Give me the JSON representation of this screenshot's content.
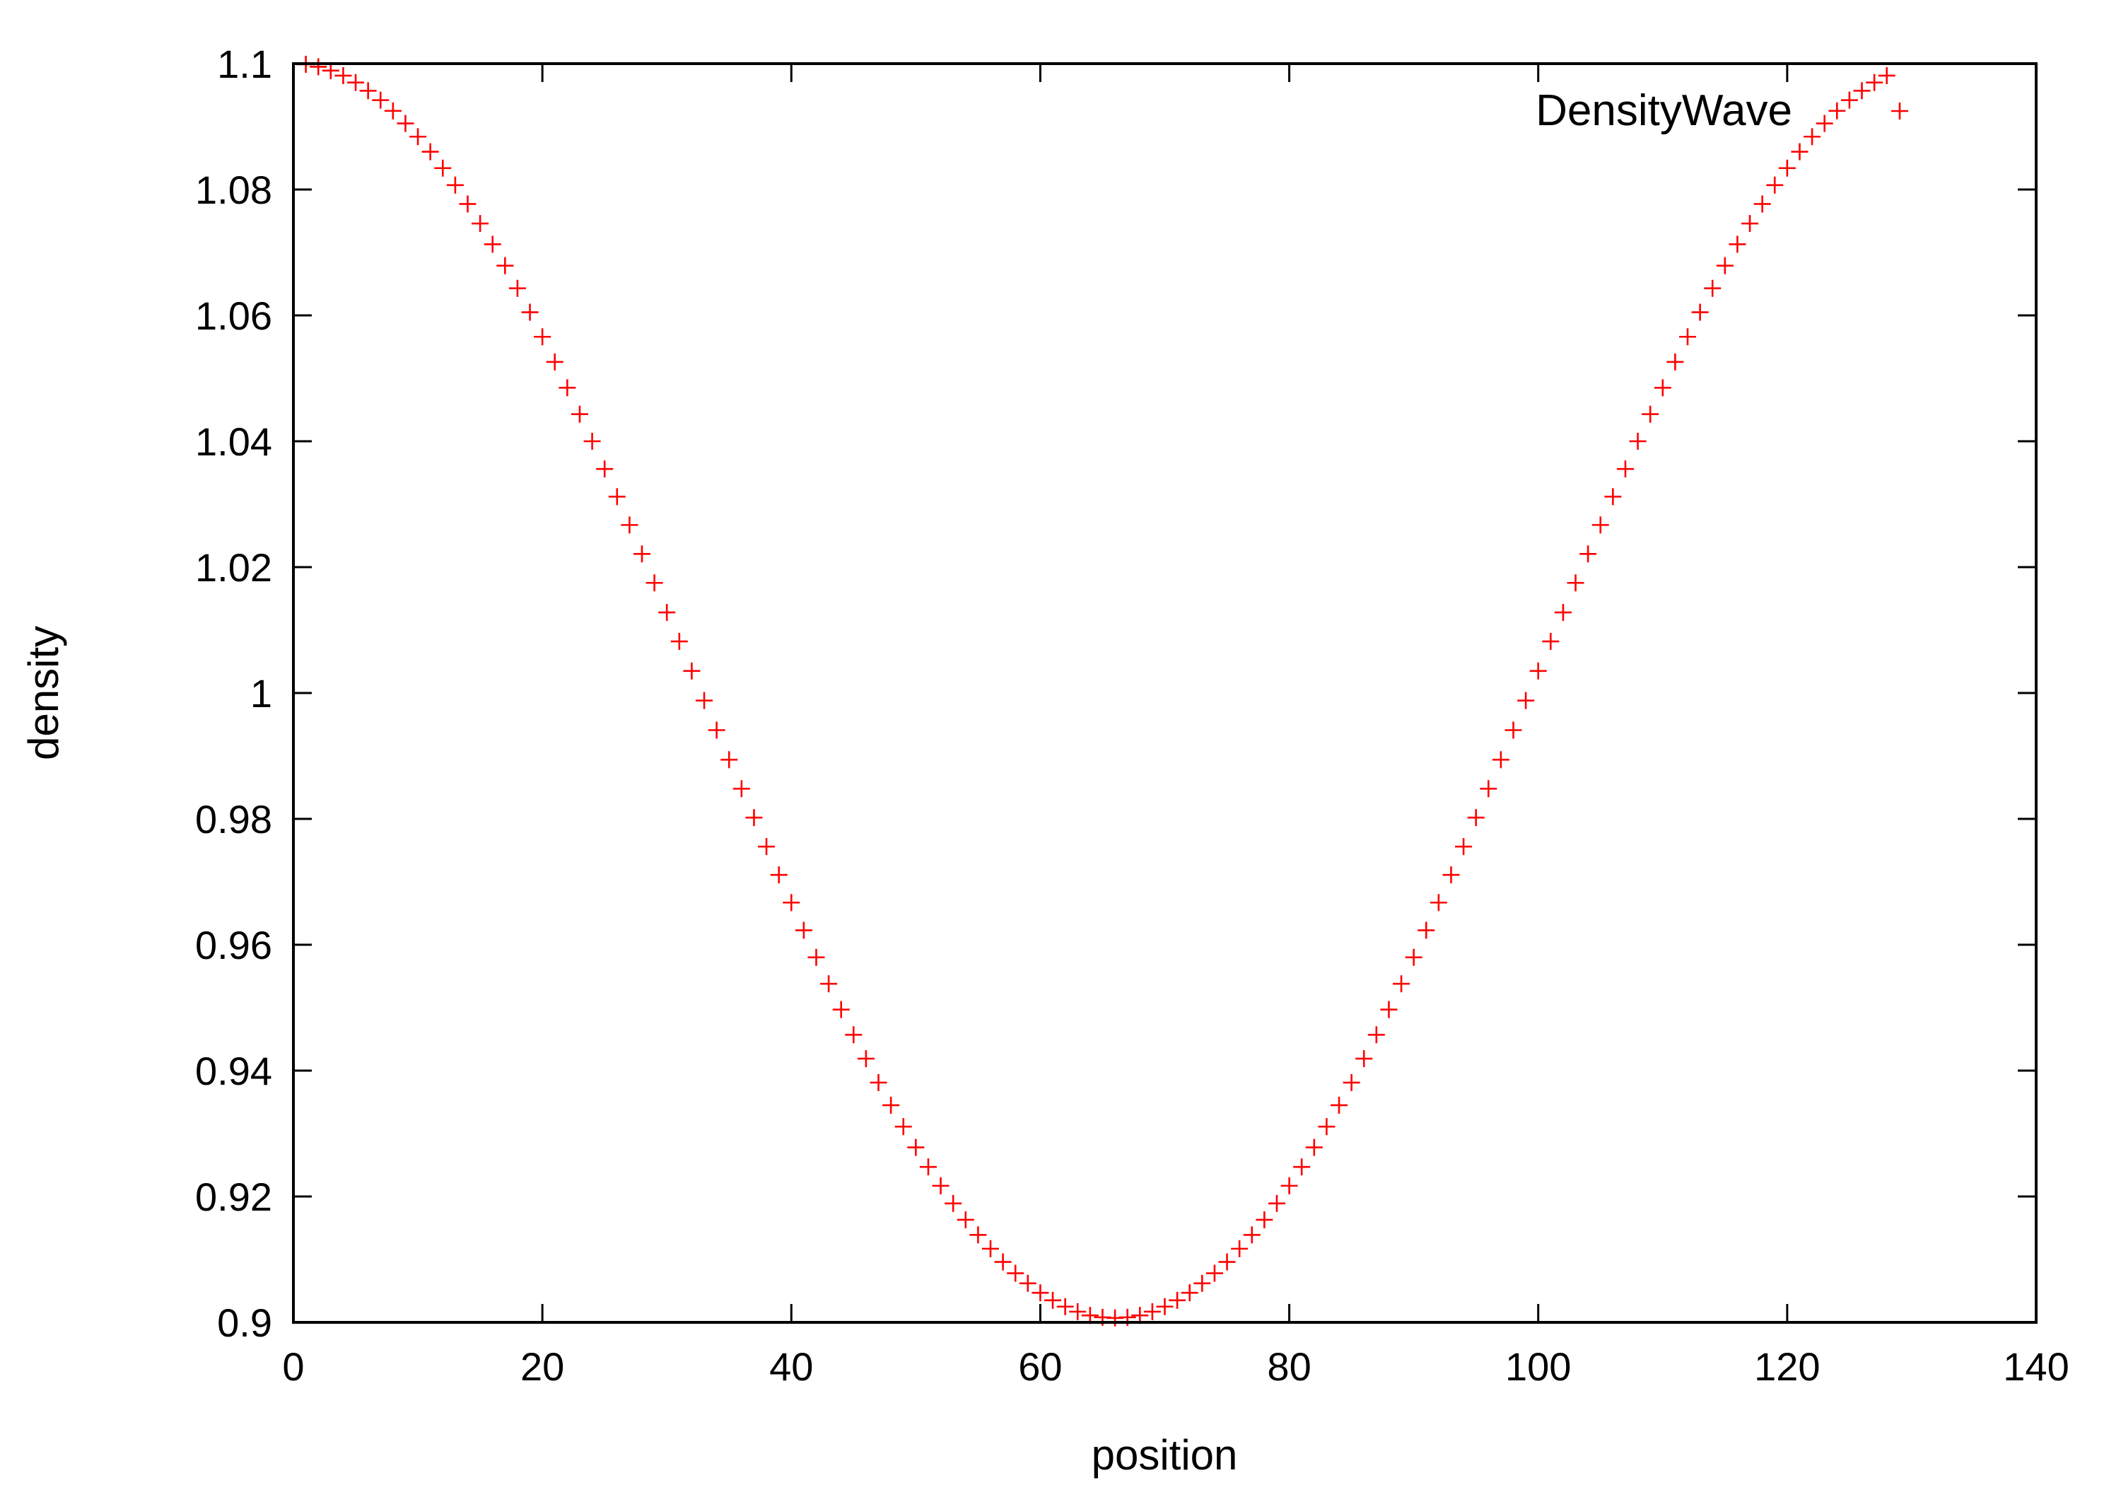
{
  "chart_data": {
    "type": "scatter",
    "title": "",
    "xlabel": "position",
    "ylabel": "density",
    "xlim": [
      0,
      140
    ],
    "ylim": [
      0.9,
      1.1
    ],
    "xticks": [
      0,
      20,
      40,
      60,
      80,
      100,
      120,
      140
    ],
    "xtick_labels": [
      "0",
      "20",
      "40",
      "60",
      "80",
      "100",
      "120",
      "140"
    ],
    "yticks": [
      0.9,
      0.92,
      0.94,
      0.96,
      0.98,
      1.0,
      1.02,
      1.04,
      1.06,
      1.08,
      1.1
    ],
    "ytick_labels": [
      "0.9",
      "0.92",
      "0.94",
      "0.96",
      "0.98",
      "1",
      "1.02",
      "1.04",
      "1.06",
      "1.08",
      "1.1"
    ],
    "grid": false,
    "legend": {
      "position": "top-right",
      "entries": [
        "DensityWave"
      ]
    },
    "series": [
      {
        "name": "DensityWave",
        "marker": "plus",
        "color": "#ff0000",
        "x": [
          1,
          2,
          3,
          4,
          5,
          6,
          7,
          8,
          9,
          10,
          11,
          12,
          13,
          14,
          15,
          16,
          17,
          18,
          19,
          20,
          21,
          22,
          23,
          24,
          25,
          26,
          27,
          28,
          29,
          30,
          31,
          32,
          33,
          34,
          35,
          36,
          37,
          38,
          39,
          40,
          41,
          42,
          43,
          44,
          45,
          46,
          47,
          48,
          49,
          50,
          51,
          52,
          53,
          54,
          55,
          56,
          57,
          58,
          59,
          60,
          61,
          62,
          63,
          64,
          65,
          66,
          67,
          68,
          69,
          70,
          71,
          72,
          73,
          74,
          75,
          76,
          77,
          78,
          79,
          80,
          81,
          82,
          83,
          84,
          85,
          86,
          87,
          88,
          89,
          90,
          91,
          92,
          93,
          94,
          95,
          96,
          97,
          98,
          99,
          100,
          101,
          102,
          103,
          104,
          105,
          106,
          107,
          108,
          109,
          110,
          111,
          112,
          113,
          114,
          115,
          116,
          117,
          118,
          119,
          120,
          121,
          122,
          123,
          124,
          125,
          126,
          127,
          128
        ],
        "y": [
          1.0999,
          1.0995,
          1.0989,
          1.0981,
          1.097,
          1.0957,
          1.0942,
          1.0925,
          1.0905,
          1.0884,
          1.086,
          1.0834,
          1.0807,
          1.0777,
          1.0746,
          1.0713,
          1.0679,
          1.0643,
          1.0605,
          1.0566,
          1.0526,
          1.0485,
          1.0443,
          1.04,
          1.0356,
          1.0312,
          1.0267,
          1.0221,
          1.0175,
          1.0128,
          1.0082,
          1.0035,
          0.9988,
          0.9941,
          0.9894,
          0.9848,
          0.9802,
          0.9756,
          0.9711,
          0.9667,
          0.9623,
          0.958,
          0.9538,
          0.9497,
          0.9457,
          0.9419,
          0.9381,
          0.9345,
          0.9311,
          0.9278,
          0.9247,
          0.9217,
          0.9189,
          0.9163,
          0.9139,
          0.9117,
          0.9096,
          0.9078,
          0.9062,
          0.9047,
          0.9035,
          0.9025,
          0.9017,
          0.9011,
          0.9008,
          0.9007,
          0.9008,
          0.9011,
          0.9017,
          0.9025,
          0.9035,
          0.9047,
          0.9062,
          0.9078,
          0.9096,
          0.9117,
          0.9139,
          0.9163,
          0.9189,
          0.9217,
          0.9247,
          0.9278,
          0.9311,
          0.9345,
          0.9381,
          0.9419,
          0.9457,
          0.9497,
          0.9538,
          0.958,
          0.9623,
          0.9667,
          0.9711,
          0.9756,
          0.9802,
          0.9848,
          0.9894,
          0.9941,
          0.9988,
          1.0035,
          1.0082,
          1.0128,
          1.0175,
          1.0221,
          1.0267,
          1.0312,
          1.0356,
          1.04,
          1.0443,
          1.0485,
          1.0526,
          1.0566,
          1.0605,
          1.0643,
          1.0679,
          1.0713,
          1.0746,
          1.0777,
          1.0807,
          1.0834,
          1.086,
          1.0884,
          1.0905,
          1.0925,
          1.0942,
          1.0957,
          1.097,
          1.0981
        ]
      }
    ]
  }
}
